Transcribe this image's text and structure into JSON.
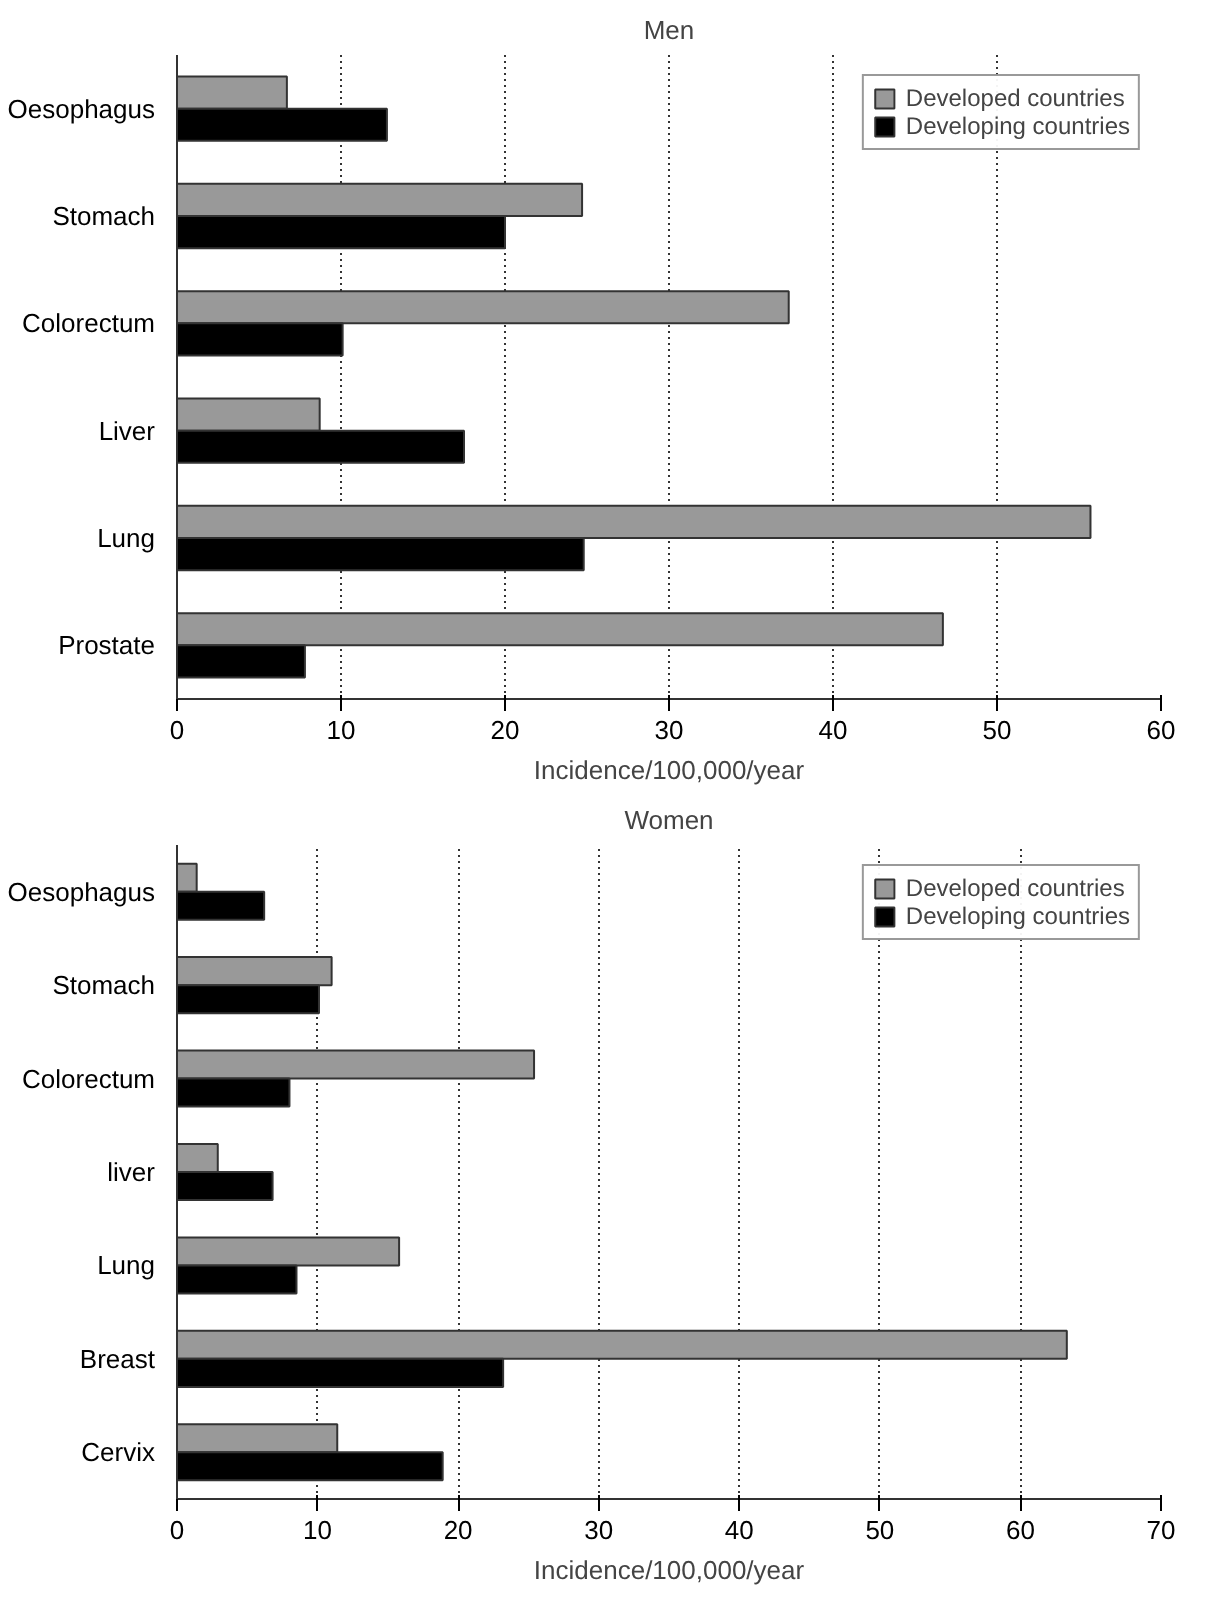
{
  "chart_data": [
    {
      "type": "bar",
      "orientation": "horizontal",
      "title": "Men",
      "xlabel": "Incidence/100,000/year",
      "categories": [
        "Oesophagus",
        "Stomach",
        "Colorectum",
        "Liver",
        "Lung",
        "Prostate"
      ],
      "series": [
        {
          "name": "Developed countries",
          "color": "#999999",
          "values": [
            6.7,
            24.7,
            37.3,
            8.7,
            55.7,
            46.7
          ]
        },
        {
          "name": "Developing countries",
          "color": "#000000",
          "values": [
            12.8,
            20.0,
            10.1,
            17.5,
            24.8,
            7.8
          ]
        }
      ],
      "xlim": [
        0,
        60
      ],
      "xticks": [
        0,
        10,
        20,
        30,
        40,
        50,
        60
      ],
      "grid": "x",
      "legend": "top right"
    },
    {
      "type": "bar",
      "orientation": "horizontal",
      "title": "Women",
      "xlabel": "Incidence/100,000/year",
      "categories": [
        "Oesophagus",
        "Stomach",
        "Colorectum",
        "liver",
        "Lung",
        "Breast",
        "Cervix"
      ],
      "series": [
        {
          "name": "Developed countries",
          "color": "#999999",
          "values": [
            1.4,
            11.0,
            25.4,
            2.9,
            15.8,
            63.3,
            11.4
          ]
        },
        {
          "name": "Developing countries",
          "color": "#000000",
          "values": [
            6.2,
            10.1,
            8.0,
            6.8,
            8.5,
            23.2,
            18.9
          ]
        }
      ],
      "xlim": [
        0,
        70
      ],
      "xticks": [
        0,
        10,
        20,
        30,
        40,
        50,
        60,
        70
      ],
      "grid": "x",
      "legend": "top right"
    }
  ]
}
